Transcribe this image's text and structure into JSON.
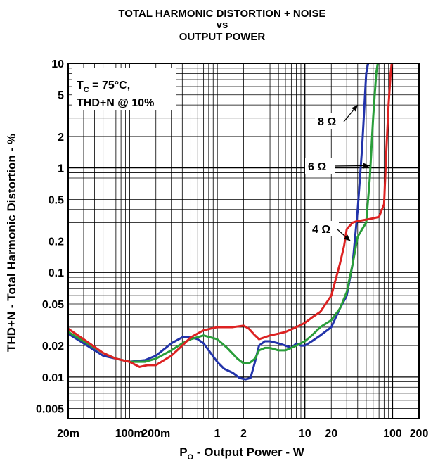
{
  "chart_data": {
    "type": "line",
    "title": [
      "TOTAL HARMONIC DISTORTION + NOISE",
      "vs",
      "OUTPUT POWER"
    ],
    "xlabel": {
      "main": "P",
      "sub": "O",
      "rest": " - Output Power - W"
    },
    "ylabel": "THD+N - Total Harmonic Distortion - %",
    "x_scale": "log",
    "y_scale": "log",
    "xlim": [
      0.02,
      200
    ],
    "ylim": [
      0.004,
      10
    ],
    "x_ticks": [
      {
        "value": 0.02,
        "label": "20m"
      },
      {
        "value": 0.1,
        "label": "100m"
      },
      {
        "value": 0.2,
        "label": "200m"
      },
      {
        "value": 1,
        "label": "1"
      },
      {
        "value": 2,
        "label": "2"
      },
      {
        "value": 10,
        "label": "10"
      },
      {
        "value": 20,
        "label": "20"
      },
      {
        "value": 100,
        "label": "100"
      },
      {
        "value": 200,
        "label": "200"
      }
    ],
    "y_ticks": [
      {
        "value": 0.005,
        "label": "0.005"
      },
      {
        "value": 0.01,
        "label": "0.01"
      },
      {
        "value": 0.02,
        "label": "0.02"
      },
      {
        "value": 0.05,
        "label": "0.05"
      },
      {
        "value": 0.1,
        "label": "0.1"
      },
      {
        "value": 0.2,
        "label": "0.2"
      },
      {
        "value": 0.5,
        "label": "0.5"
      },
      {
        "value": 1,
        "label": "1"
      },
      {
        "value": 2,
        "label": "2"
      },
      {
        "value": 5,
        "label": "5"
      },
      {
        "value": 10,
        "label": "10"
      }
    ],
    "grid": true,
    "condition_box": {
      "line1_main": "T",
      "line1_sub": "C",
      "line1_rest": " = 75°C,",
      "line2": "THD+N @ 10%"
    },
    "series": [
      {
        "name": "8 Ω",
        "color": "#2233aa",
        "x": [
          0.02,
          0.03,
          0.05,
          0.07,
          0.1,
          0.15,
          0.2,
          0.3,
          0.4,
          0.5,
          0.6,
          0.7,
          0.8,
          1.0,
          1.2,
          1.5,
          1.8,
          2.1,
          2.4,
          2.7,
          3.0,
          3.5,
          4,
          5,
          6,
          7,
          8,
          9,
          10,
          12,
          15,
          20,
          25,
          30,
          35,
          40,
          45,
          50,
          55
        ],
        "y": [
          0.026,
          0.021,
          0.016,
          0.015,
          0.014,
          0.0145,
          0.016,
          0.021,
          0.024,
          0.024,
          0.023,
          0.021,
          0.018,
          0.014,
          0.012,
          0.011,
          0.0098,
          0.0095,
          0.0098,
          0.014,
          0.02,
          0.022,
          0.022,
          0.021,
          0.02,
          0.019,
          0.021,
          0.02,
          0.02,
          0.022,
          0.025,
          0.03,
          0.045,
          0.06,
          0.12,
          0.4,
          1.6,
          8.0,
          12.0
        ]
      },
      {
        "name": "6 Ω",
        "color": "#2a9e3a",
        "x": [
          0.02,
          0.03,
          0.05,
          0.07,
          0.1,
          0.15,
          0.2,
          0.3,
          0.4,
          0.5,
          0.7,
          1.0,
          1.3,
          1.7,
          2.0,
          2.3,
          2.7,
          3.0,
          3.5,
          4,
          5,
          6,
          7,
          8,
          10,
          12,
          15,
          20,
          25,
          30,
          35,
          40,
          45,
          50,
          55,
          60,
          65,
          70
        ],
        "y": [
          0.027,
          0.022,
          0.017,
          0.015,
          0.014,
          0.014,
          0.015,
          0.018,
          0.021,
          0.023,
          0.025,
          0.023,
          0.019,
          0.015,
          0.0135,
          0.0135,
          0.015,
          0.018,
          0.019,
          0.019,
          0.018,
          0.018,
          0.019,
          0.02,
          0.022,
          0.025,
          0.03,
          0.035,
          0.045,
          0.065,
          0.12,
          0.22,
          0.26,
          0.3,
          0.8,
          3.0,
          8.0,
          12.0
        ]
      },
      {
        "name": "4 Ω",
        "color": "#dd2222",
        "x": [
          0.02,
          0.03,
          0.05,
          0.07,
          0.1,
          0.13,
          0.16,
          0.2,
          0.3,
          0.4,
          0.5,
          0.7,
          1.0,
          1.5,
          2.0,
          2.3,
          2.7,
          3.0,
          3.5,
          4,
          5,
          6,
          8,
          10,
          12,
          15,
          20,
          25,
          28,
          30,
          35,
          40,
          50,
          60,
          70,
          80,
          85,
          90,
          95,
          100
        ],
        "y": [
          0.029,
          0.023,
          0.017,
          0.015,
          0.014,
          0.0125,
          0.013,
          0.013,
          0.016,
          0.02,
          0.024,
          0.028,
          0.03,
          0.03,
          0.031,
          0.029,
          0.025,
          0.023,
          0.024,
          0.025,
          0.026,
          0.027,
          0.03,
          0.033,
          0.037,
          0.042,
          0.06,
          0.12,
          0.18,
          0.26,
          0.3,
          0.31,
          0.32,
          0.33,
          0.34,
          0.45,
          1.5,
          4.0,
          8.0,
          12.0
        ]
      }
    ],
    "series_labels": [
      {
        "name": "8 Ω",
        "text": "8 Ω"
      },
      {
        "name": "6 Ω",
        "text": "6 Ω"
      },
      {
        "name": "4 Ω",
        "text": "4 Ω"
      }
    ]
  }
}
